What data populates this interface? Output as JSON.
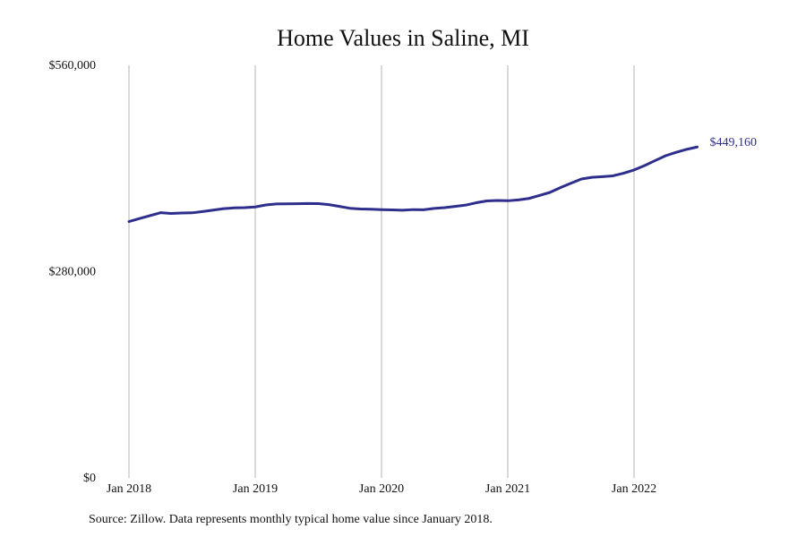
{
  "chart_data": {
    "type": "line",
    "title": "Home Values in Saline, MI",
    "xlabel": "",
    "ylabel": "",
    "ylim": [
      0,
      560000
    ],
    "y_ticks": [
      {
        "value": 0,
        "label": "$0"
      },
      {
        "value": 280000,
        "label": "$280,000"
      },
      {
        "value": 560000,
        "label": "$560,000"
      }
    ],
    "x_ticks": [
      {
        "value": 2018.0,
        "label": "Jan 2018"
      },
      {
        "value": 2019.0,
        "label": "Jan 2019"
      },
      {
        "value": 2020.0,
        "label": "Jan 2020"
      },
      {
        "value": 2021.0,
        "label": "Jan 2021"
      },
      {
        "value": 2022.0,
        "label": "Jan 2022"
      }
    ],
    "x_range": [
      2018.0,
      2023.0
    ],
    "grid": "vertical",
    "series": [
      {
        "color": "#2e2e8c",
        "x": [
          "2018-01",
          "2018-02",
          "2018-03",
          "2018-04",
          "2018-05",
          "2018-06",
          "2018-07",
          "2018-08",
          "2018-09",
          "2018-10",
          "2018-11",
          "2018-12",
          "2019-01",
          "2019-02",
          "2019-03",
          "2019-04",
          "2019-05",
          "2019-06",
          "2019-07",
          "2019-08",
          "2019-09",
          "2019-10",
          "2019-11",
          "2019-12",
          "2020-01",
          "2020-02",
          "2020-03",
          "2020-04",
          "2020-05",
          "2020-06",
          "2020-07",
          "2020-08",
          "2020-09",
          "2020-10",
          "2020-11",
          "2020-12",
          "2021-01",
          "2021-02",
          "2021-03",
          "2021-04",
          "2021-05",
          "2021-06",
          "2021-07",
          "2021-08",
          "2021-09",
          "2021-10",
          "2021-11",
          "2021-12",
          "2022-01",
          "2022-02",
          "2022-03",
          "2022-04",
          "2022-05",
          "2022-06",
          "2022-07"
        ],
        "values": [
          348000,
          352000,
          356000,
          360000,
          359000,
          359500,
          359800,
          361500,
          363500,
          365500,
          366500,
          366800,
          367800,
          370500,
          371800,
          372000,
          372200,
          372500,
          372300,
          371000,
          368500,
          366000,
          365000,
          364800,
          364200,
          363800,
          363300,
          364200,
          364000,
          365800,
          366800,
          368500,
          370300,
          373500,
          376000,
          376600,
          376200,
          377300,
          379300,
          383300,
          387500,
          394000,
          400000,
          405700,
          408000,
          408900,
          410000,
          413600,
          418000,
          424000,
          430700,
          437300,
          442000,
          446000,
          449160
        ],
        "end_label": "$449,160"
      }
    ]
  },
  "footer": {
    "source": "Source: Zillow. Data represents monthly typical home value since January 2018."
  }
}
